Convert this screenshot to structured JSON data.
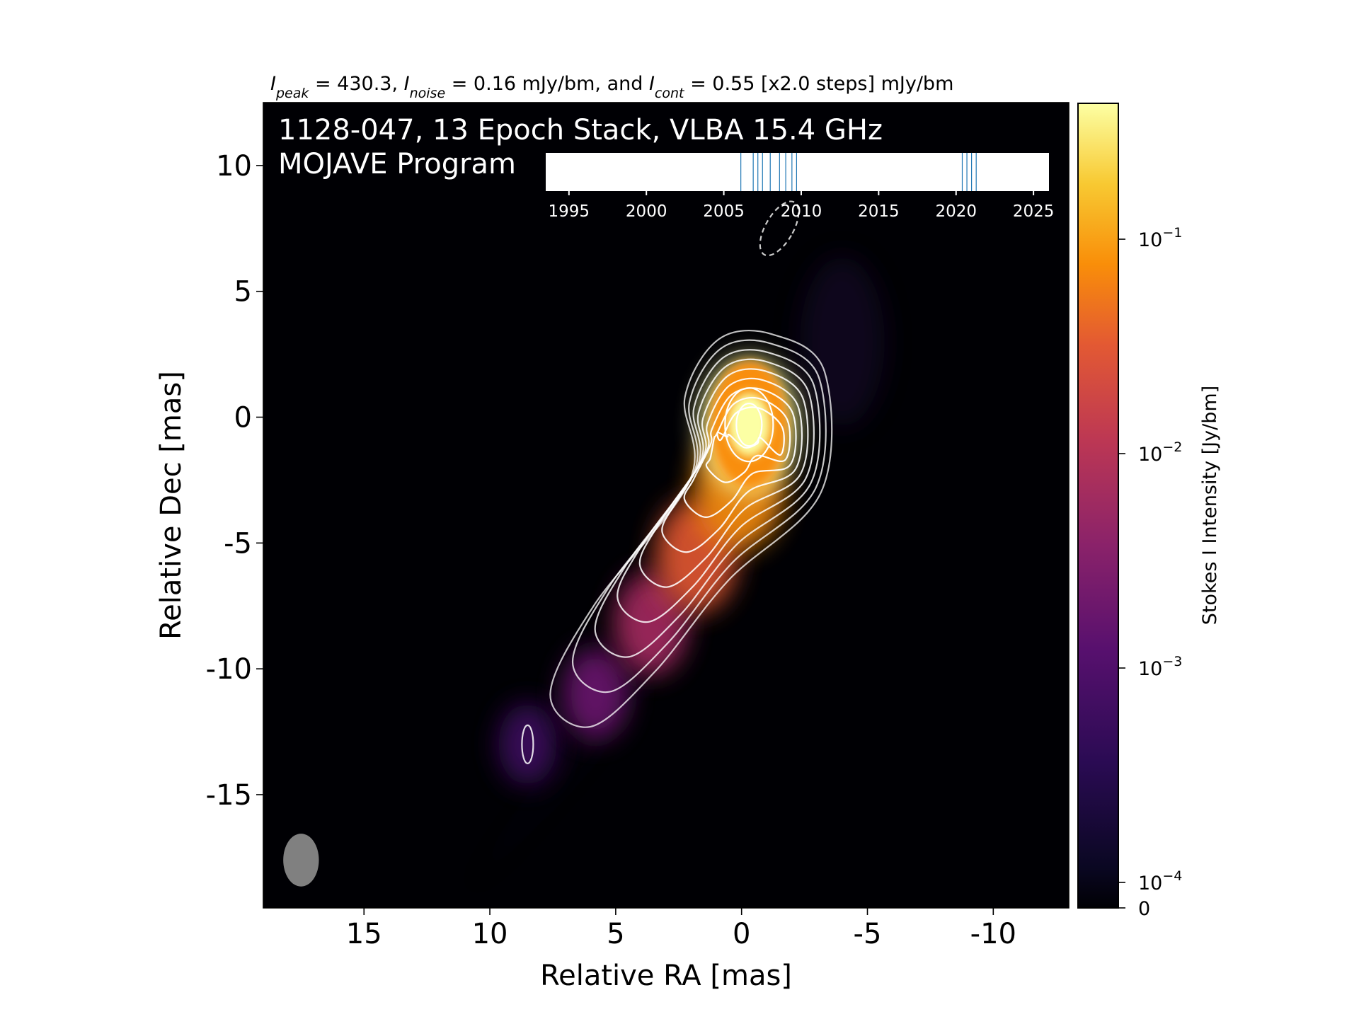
{
  "header": {
    "title_parts": [
      {
        "text": "I",
        "style": "italic"
      },
      {
        "text": "peak",
        "style": "sub"
      },
      {
        "text": " = 430.3, ",
        "style": "normal"
      },
      {
        "text": "I",
        "style": "italic"
      },
      {
        "text": "noise",
        "style": "sub"
      },
      {
        "text": " = 0.16 mJy/bm, and ",
        "style": "normal"
      },
      {
        "text": "I",
        "style": "italic"
      },
      {
        "text": "cont",
        "style": "sub"
      },
      {
        "text": " = 0.55 [x2.0 steps] mJy/bm",
        "style": "normal"
      }
    ]
  },
  "overlay": {
    "line1": "1128-047, 13 Epoch Stack, VLBA 15.4 GHz",
    "line2": "MOJAVE Program"
  },
  "chart_data": {
    "type": "heatmap",
    "xlabel": "Relative RA [mas]",
    "ylabel": "Relative Dec [mas]",
    "xlim": [
      19,
      -13
    ],
    "ylim": [
      -19.5,
      12.5
    ],
    "xticks": [
      15,
      10,
      5,
      0,
      -5,
      -10
    ],
    "yticks": [
      10,
      5,
      0,
      -5,
      -10,
      -15
    ],
    "colormap": "inferno",
    "contour_color": "#ffffff",
    "colorbar": {
      "label": "Stokes I Intensity [Jy/bm]",
      "scale": "log",
      "ticks": [
        {
          "value": 0.1,
          "base": "10",
          "exp": "−1"
        },
        {
          "value": 0.01,
          "base": "10",
          "exp": "−2"
        },
        {
          "value": 0.001,
          "base": "10",
          "exp": "−3"
        },
        {
          "value": 0.0001,
          "base": "10",
          "exp": "−4"
        },
        {
          "value": 0,
          "base": "0",
          "exp": ""
        }
      ],
      "range": [
        0,
        0.4303
      ]
    },
    "core": {
      "ra": -0.3,
      "dec": -0.3,
      "peak_jy_per_bm": 0.4303
    },
    "jet_components": [
      {
        "ra": -0.3,
        "dec": -0.3,
        "flux": 1.0
      },
      {
        "ra": 0.1,
        "dec": -2.8,
        "flux": 0.12
      },
      {
        "ra": 1.8,
        "dec": -5.5,
        "flux": 0.035
      },
      {
        "ra": 3.6,
        "dec": -8.2,
        "flux": 0.008
      },
      {
        "ra": 5.8,
        "dec": -11.0,
        "flux": 0.0022
      },
      {
        "ra": 8.5,
        "dec": -13.0,
        "flux": 0.0012
      }
    ],
    "beam": {
      "major_mas": 2.1,
      "minor_mas": 1.2,
      "pa_deg": 0,
      "color": "#808080"
    },
    "dashed_ellipse": {
      "ra": -1.5,
      "dec": 7.5,
      "major_mas": 2.4,
      "minor_mas": 1.1,
      "pa_deg": 30
    },
    "epoch_timeline": {
      "xlim": [
        1993.5,
        2026.0
      ],
      "xticks": [
        1995,
        2000,
        2005,
        2010,
        2015,
        2020,
        2025
      ],
      "epochs": [
        2006.1,
        2006.9,
        2007.2,
        2007.5,
        2008.0,
        2008.6,
        2009.0,
        2009.4,
        2009.7,
        2020.4,
        2020.7,
        2021.0,
        2021.3
      ],
      "line_color": "#1f77b4"
    }
  }
}
